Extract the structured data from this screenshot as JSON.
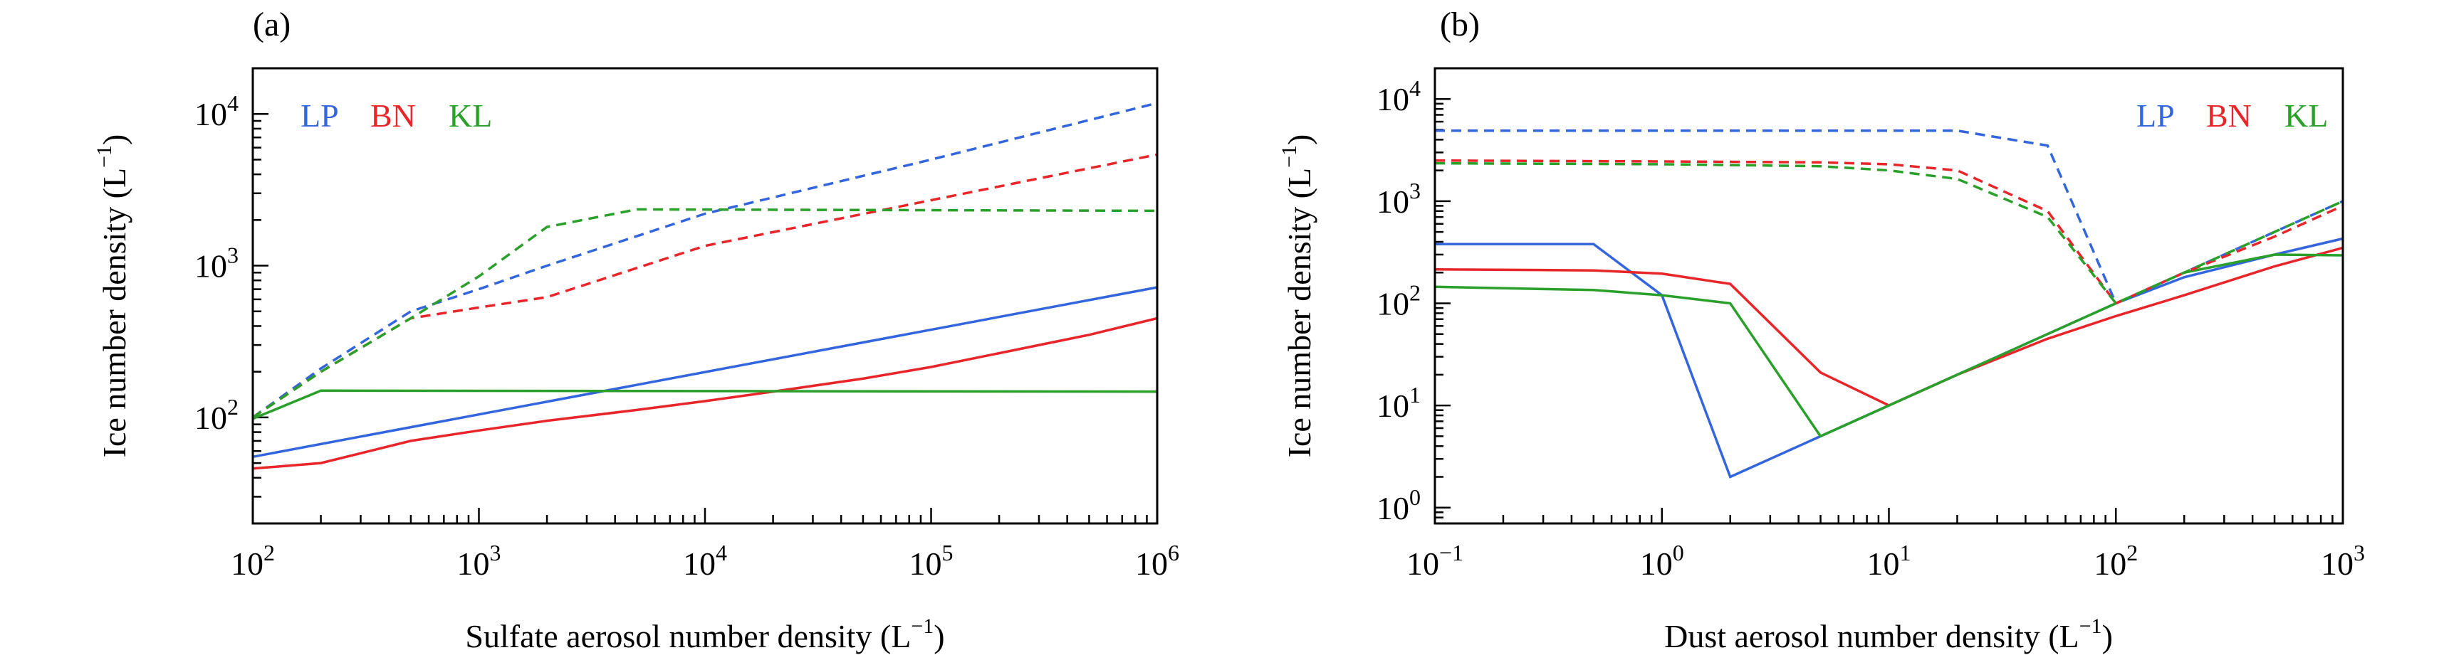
{
  "colors": {
    "LP": "#3366dd",
    "BN": "#e8262a",
    "KL": "#2aa02a"
  },
  "chart_data": [
    {
      "type": "line",
      "panel_label": "(a)",
      "xlabel_main": "Sulfate aerosol number density (L",
      "xlabel_sup": "−1",
      "xlabel_close": ")",
      "ylabel_main": "Ice number density (L",
      "ylabel_sup": "−1",
      "ylabel_close": ")",
      "x_scale": "log",
      "y_scale": "log",
      "xlim": [
        100,
        1000000
      ],
      "ylim": [
        20,
        20000
      ],
      "x_ticks": [
        {
          "value": 100,
          "base": "10",
          "exp": "2"
        },
        {
          "value": 1000,
          "base": "10",
          "exp": "3"
        },
        {
          "value": 10000,
          "base": "10",
          "exp": "4"
        },
        {
          "value": 100000,
          "base": "10",
          "exp": "5"
        },
        {
          "value": 1000000,
          "base": "10",
          "exp": "6"
        }
      ],
      "y_ticks": [
        {
          "value": 100,
          "base": "10",
          "exp": "2"
        },
        {
          "value": 1000,
          "base": "10",
          "exp": "3"
        },
        {
          "value": 10000,
          "base": "10",
          "exp": "4"
        }
      ],
      "legend": [
        {
          "label": "LP",
          "color": "#3366dd"
        },
        {
          "label": "BN",
          "color": "#e8262a"
        },
        {
          "label": "KL",
          "color": "#2aa02a"
        }
      ],
      "legend_position": "top-left",
      "series": [
        {
          "name": "LP",
          "color": "#3366dd",
          "style": "solid",
          "x": [
            100,
            1000000
          ],
          "y": [
            55,
            720
          ]
        },
        {
          "name": "BN",
          "color": "#e8262a",
          "style": "solid",
          "x": [
            100,
            200,
            500,
            1000,
            2000,
            5000,
            10000,
            20000,
            50000,
            100000,
            200000,
            500000,
            1000000
          ],
          "y": [
            46,
            50,
            70,
            82,
            95,
            112,
            128,
            148,
            180,
            215,
            265,
            350,
            450
          ]
        },
        {
          "name": "KL",
          "color": "#2aa02a",
          "style": "solid",
          "x": [
            100,
            200,
            1000000
          ],
          "y": [
            98,
            150,
            148
          ]
        },
        {
          "name": "LP",
          "color": "#3366dd",
          "style": "dashed",
          "x": [
            100,
            200,
            500,
            1000,
            2000,
            10000,
            100000,
            1000000
          ],
          "y": [
            100,
            210,
            500,
            700,
            1000,
            2200,
            5000,
            11800
          ]
        },
        {
          "name": "BN",
          "color": "#e8262a",
          "style": "dashed",
          "x": [
            100,
            200,
            500,
            1000,
            2000,
            10000,
            100000,
            1000000
          ],
          "y": [
            100,
            200,
            450,
            530,
            620,
            1350,
            2700,
            5400
          ]
        },
        {
          "name": "KL",
          "color": "#2aa02a",
          "style": "dashed",
          "x": [
            100,
            200,
            500,
            1000,
            2000,
            5000,
            1000000
          ],
          "y": [
            100,
            200,
            450,
            850,
            1800,
            2350,
            2300
          ]
        }
      ]
    },
    {
      "type": "line",
      "panel_label": "(b)",
      "xlabel_main": "Dust aerosol number density (L",
      "xlabel_sup": "−1",
      "xlabel_close": ")",
      "ylabel_main": "Ice number density (L",
      "ylabel_sup": "−1",
      "ylabel_close": ")",
      "x_scale": "log",
      "y_scale": "log",
      "xlim": [
        0.1,
        1000
      ],
      "ylim": [
        0.7,
        20000
      ],
      "x_ticks": [
        {
          "value": 0.1,
          "base": "10",
          "exp": "−1"
        },
        {
          "value": 1,
          "base": "10",
          "exp": "0"
        },
        {
          "value": 10,
          "base": "10",
          "exp": "1"
        },
        {
          "value": 100,
          "base": "10",
          "exp": "2"
        },
        {
          "value": 1000,
          "base": "10",
          "exp": "3"
        }
      ],
      "y_ticks": [
        {
          "value": 1,
          "base": "10",
          "exp": "0"
        },
        {
          "value": 10,
          "base": "10",
          "exp": "1"
        },
        {
          "value": 100,
          "base": "10",
          "exp": "2"
        },
        {
          "value": 1000,
          "base": "10",
          "exp": "3"
        },
        {
          "value": 10000,
          "base": "10",
          "exp": "4"
        }
      ],
      "legend": [
        {
          "label": "LP",
          "color": "#3366dd"
        },
        {
          "label": "BN",
          "color": "#e8262a"
        },
        {
          "label": "KL",
          "color": "#2aa02a"
        }
      ],
      "legend_position": "top-right",
      "series": [
        {
          "name": "LP",
          "color": "#3366dd",
          "style": "solid",
          "x": [
            0.1,
            0.5,
            1,
            2,
            5,
            10,
            20,
            50,
            100,
            200,
            500,
            1000
          ],
          "y": [
            380,
            380,
            120,
            2,
            5,
            10,
            20,
            50,
            100,
            180,
            300,
            430
          ]
        },
        {
          "name": "BN",
          "color": "#e8262a",
          "style": "solid",
          "x": [
            0.1,
            0.5,
            1,
            2,
            5,
            10,
            20,
            50,
            100,
            200,
            500,
            1000
          ],
          "y": [
            215,
            210,
            195,
            155,
            21,
            10,
            20,
            45,
            75,
            120,
            230,
            350
          ]
        },
        {
          "name": "KL",
          "color": "#2aa02a",
          "style": "solid",
          "x": [
            0.1,
            0.5,
            1,
            2,
            5,
            10,
            20,
            50,
            100,
            200,
            500,
            1000
          ],
          "y": [
            145,
            135,
            120,
            100,
            5,
            10,
            20,
            50,
            100,
            200,
            300,
            295
          ]
        },
        {
          "name": "LP",
          "color": "#3366dd",
          "style": "dashed",
          "x": [
            0.1,
            20,
            50,
            100,
            200,
            500,
            1000
          ],
          "y": [
            4900,
            4900,
            3500,
            100,
            200,
            500,
            1000
          ]
        },
        {
          "name": "BN",
          "color": "#e8262a",
          "style": "dashed",
          "x": [
            0.1,
            1,
            5,
            10,
            20,
            50,
            100,
            200,
            500,
            1000
          ],
          "y": [
            2500,
            2450,
            2400,
            2300,
            2000,
            800,
            100,
            200,
            450,
            900
          ]
        },
        {
          "name": "KL",
          "color": "#2aa02a",
          "style": "dashed",
          "x": [
            0.1,
            1,
            5,
            10,
            20,
            50,
            100,
            200,
            500,
            1000
          ],
          "y": [
            2350,
            2300,
            2200,
            2000,
            1650,
            700,
            100,
            200,
            500,
            1000
          ]
        }
      ]
    }
  ]
}
